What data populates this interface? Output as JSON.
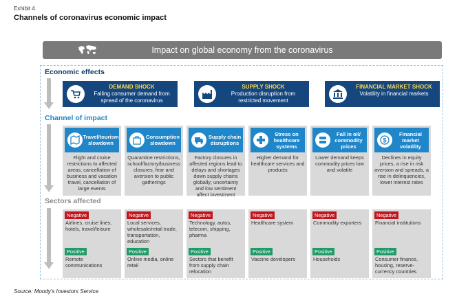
{
  "exhibit": "Exhibit 4",
  "title": "Channels of coronavirus economic impact",
  "banner": "Impact on global economy from the coronavirus",
  "sections": {
    "economic_effects": "Economic effects",
    "channel_of_impact": "Channel of impact",
    "sectors_affected": "Sectors affected"
  },
  "shocks": [
    {
      "title": "DEMAND SHOCK",
      "desc": "Falling consumer demand from spread of the coronavirus",
      "icon": "cart-icon"
    },
    {
      "title": "SUPPLY SHOCK",
      "desc": "Production disruption from restricted movement",
      "icon": "factory-icon"
    },
    {
      "title": "FINANCIAL MARKET SHOCK",
      "desc": "Volatility in financial markets",
      "icon": "bank-icon"
    }
  ],
  "channels": [
    {
      "label": "Travel/tourism slowdown",
      "desc": "Flight and cruise restrictions to affected areas, cancellation of business and vacation travel, cancellation of large events",
      "icon": "map-icon"
    },
    {
      "label": "Consumption slowdown",
      "desc": "Quarantine restrictions, school/factory/business closures, fear and aversion to public gatherings",
      "icon": "shopping-bag-icon"
    },
    {
      "label": "Supply chain disruptions",
      "desc": "Factory closures in affected regions lead to delays and shortages down supply chains globally; uncertainty and low sentiment affect investment",
      "icon": "truck-icon"
    },
    {
      "label": "Stress on healthcare systems",
      "desc": "Higher demand for healthcare services and products",
      "icon": "medical-icon"
    },
    {
      "label": "Fall in oil/ commodity prices",
      "desc": "Lower demand keeps commodity prices low and volatile",
      "icon": "barrels-icon"
    },
    {
      "label": "Financial market volatility",
      "desc": "Declines in equity prices, a rise in risk aversion and spreads, a rise in delinquencies, lower interest rates",
      "icon": "dollar-icon"
    }
  ],
  "badges": {
    "negative": "Negative",
    "positive": "Positive"
  },
  "sectors": [
    {
      "negative": "Airlines, cruise lines, hotels, travel/leisure",
      "positive": "Remote communications"
    },
    {
      "negative": "Local services, wholesale/retail trade, transportation, education",
      "positive": "Online media, online retail"
    },
    {
      "negative": "Technology, autos, telecom, shipping, pharma",
      "positive": "Sectors that benefit from supply chain relocation"
    },
    {
      "negative": "Healthcare system",
      "positive": "Vaccine developers"
    },
    {
      "negative": "Commodity exporters",
      "positive": "Households"
    },
    {
      "negative": "Financial institutions",
      "positive": "Consumer finance, housing, reserve-currency countries"
    }
  ],
  "source": "Source: Moody's Investors Service",
  "colors": {
    "navy": "#15467e",
    "blue": "#1f87c9",
    "gray": "#d9d9d9",
    "negative": "#c0161d",
    "positive": "#1f9a68",
    "shock_title": "#ffd84a"
  }
}
